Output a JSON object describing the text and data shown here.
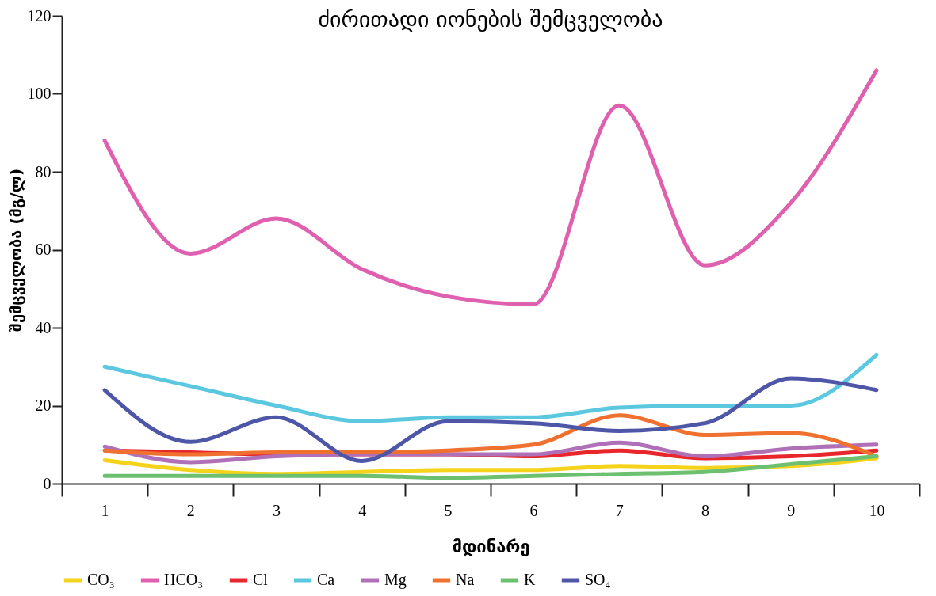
{
  "chart_data": {
    "type": "line",
    "title": "ძირითადი იონების შემცველობა",
    "xlabel": "მდინარე",
    "ylabel": "შემცველობა (მგ/ლ)",
    "categories": [
      "1",
      "2",
      "3",
      "4",
      "5",
      "6",
      "7",
      "8",
      "9",
      "10"
    ],
    "ylim": [
      0,
      120
    ],
    "yticks": [
      0,
      20,
      40,
      60,
      80,
      100,
      120
    ],
    "grid": false,
    "legend": "bottom",
    "series": [
      {
        "name": "CO₃",
        "color": "#f5d31a",
        "values": [
          6,
          3.5,
          2.5,
          3,
          3.5,
          3.5,
          4.5,
          4,
          4.5,
          6.5
        ]
      },
      {
        "name": "HCO₃",
        "color": "#e060b0",
        "values": [
          88,
          59,
          68,
          55,
          48,
          46,
          97,
          56,
          72,
          106
        ]
      },
      {
        "name": "Cl",
        "color": "#e8262b",
        "values": [
          8.5,
          8,
          7.5,
          7.5,
          7.5,
          7,
          8.5,
          6.5,
          7,
          8.5
        ]
      },
      {
        "name": "Ca",
        "color": "#5bc8e0",
        "values": [
          30,
          25,
          20,
          16,
          17,
          17,
          19.5,
          20,
          20,
          33
        ]
      },
      {
        "name": "Mg",
        "color": "#b070b8",
        "values": [
          9.5,
          5.5,
          7,
          7.5,
          7.5,
          7.5,
          10.5,
          7,
          9,
          10
        ]
      },
      {
        "name": "Na",
        "color": "#f07030",
        "values": [
          8.5,
          7.5,
          8,
          8,
          8.5,
          10,
          17.5,
          12.5,
          13,
          7
        ]
      },
      {
        "name": "K",
        "color": "#6cc070",
        "values": [
          2,
          2,
          2,
          2,
          1.5,
          2,
          2.5,
          3,
          5,
          7
        ]
      },
      {
        "name": "SO₄",
        "color": "#4e56a8",
        "values": [
          24,
          10.7,
          17,
          5.8,
          16,
          15.5,
          13.5,
          15.5,
          27,
          24
        ]
      }
    ]
  }
}
